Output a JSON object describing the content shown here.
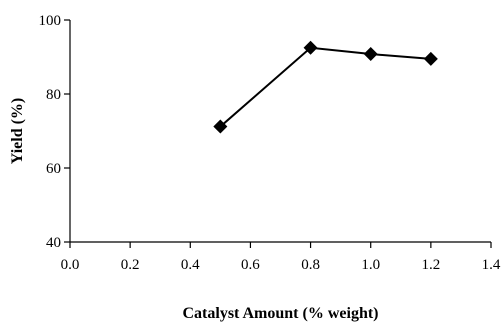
{
  "chart_data": {
    "type": "line",
    "title": "",
    "xlabel": "Catalyst Amount (% weight)",
    "ylabel": "Yield (%)",
    "xlim": [
      0.0,
      1.4
    ],
    "ylim": [
      40,
      100
    ],
    "x_ticks": [
      "0.0",
      "0.2",
      "0.4",
      "0.6",
      "0.8",
      "1.0",
      "1.2",
      "1.4"
    ],
    "y_ticks": [
      "40",
      "60",
      "80",
      "100"
    ],
    "grid": false,
    "marker": "diamond",
    "series": [
      {
        "x": [
          0.5,
          0.8,
          1.0,
          1.2
        ],
        "values": [
          71.2,
          92.5,
          90.8,
          89.5
        ]
      }
    ]
  }
}
